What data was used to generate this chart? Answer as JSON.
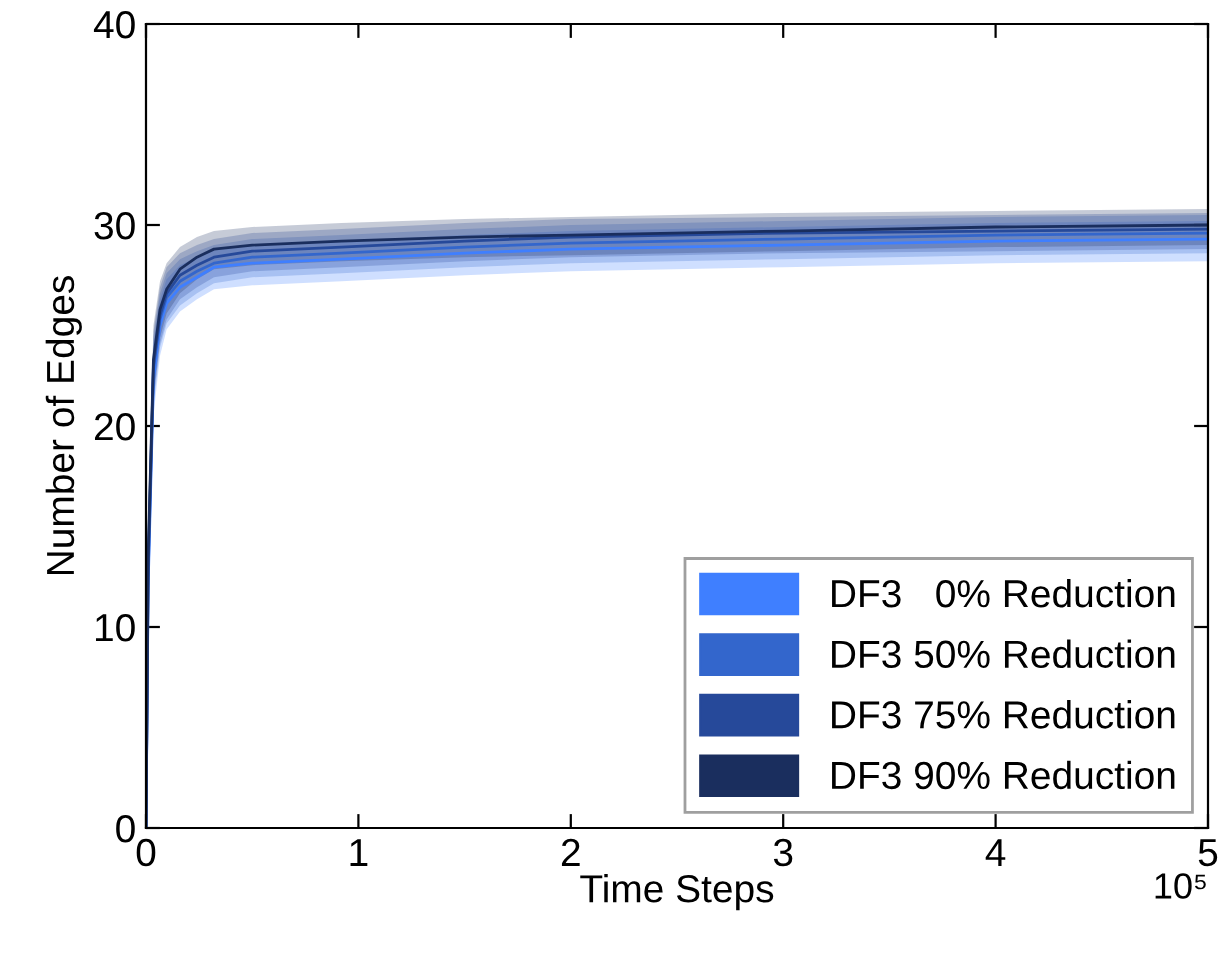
{
  "chart_data": {
    "type": "line",
    "xlabel": "Time Steps",
    "ylabel": "Number of Edges",
    "x": [
      0,
      0.01,
      0.035,
      0.066,
      0.097,
      0.16,
      0.24,
      0.32,
      0.5,
      0.92,
      1.5,
      2,
      3,
      4,
      5
    ],
    "series": [
      {
        "name": "DF3   0% Reduction",
        "color": "#3f7fff",
        "values": [
          0,
          12,
          22.3,
          25.0,
          26.1,
          26.9,
          27.4,
          27.9,
          28.1,
          28.3,
          28.6,
          28.8,
          29.0,
          29.2,
          29.3
        ],
        "lower": [
          0,
          10,
          20.5,
          23.5,
          24.8,
          25.7,
          26.3,
          26.8,
          27.0,
          27.2,
          27.5,
          27.7,
          27.9,
          28.1,
          28.2
        ],
        "upper": [
          0,
          14,
          24.0,
          26.3,
          27.3,
          28.0,
          28.4,
          28.8,
          29.0,
          29.2,
          29.5,
          29.7,
          29.9,
          30.1,
          30.2
        ]
      },
      {
        "name": "DF3 50% Reduction",
        "color": "#3366cc",
        "values": [
          0,
          12.5,
          22.8,
          25.3,
          26.4,
          27.2,
          27.7,
          28.1,
          28.4,
          28.6,
          28.9,
          29.1,
          29.3,
          29.5,
          29.6
        ],
        "lower": [
          0,
          10.5,
          21.0,
          23.9,
          25.1,
          26.0,
          26.6,
          27.1,
          27.4,
          27.6,
          27.9,
          28.1,
          28.3,
          28.5,
          28.6
        ],
        "upper": [
          0,
          14.5,
          24.4,
          26.6,
          27.6,
          28.3,
          28.7,
          29.0,
          29.3,
          29.5,
          29.8,
          30.0,
          30.2,
          30.4,
          30.5
        ]
      },
      {
        "name": "DF3 75% Reduction",
        "color": "#26499a",
        "values": [
          0,
          13,
          23.0,
          25.5,
          26.6,
          27.5,
          28.0,
          28.4,
          28.7,
          28.9,
          29.2,
          29.4,
          29.6,
          29.7,
          29.8
        ],
        "lower": [
          0,
          11,
          21.3,
          24.1,
          25.3,
          26.3,
          26.9,
          27.4,
          27.7,
          27.9,
          28.2,
          28.4,
          28.6,
          28.7,
          28.8
        ],
        "upper": [
          0,
          15,
          24.7,
          26.9,
          27.9,
          28.6,
          29.0,
          29.3,
          29.6,
          29.8,
          30.1,
          30.3,
          30.4,
          30.5,
          30.6
        ]
      },
      {
        "name": "DF3 90% Reduction",
        "color": "#1a2e5e",
        "values": [
          0,
          13.5,
          23.3,
          25.8,
          26.8,
          27.8,
          28.4,
          28.8,
          29.0,
          29.2,
          29.4,
          29.5,
          29.7,
          29.9,
          30.0
        ],
        "lower": [
          0,
          11.5,
          21.6,
          24.4,
          25.6,
          26.6,
          27.3,
          27.8,
          28.0,
          28.2,
          28.4,
          28.5,
          28.7,
          28.9,
          29.0
        ],
        "upper": [
          0,
          15.5,
          25.0,
          27.2,
          28.1,
          28.9,
          29.4,
          29.7,
          29.9,
          30.1,
          30.3,
          30.4,
          30.6,
          30.7,
          30.8
        ]
      }
    ],
    "xlim": [
      0,
      5
    ],
    "ylim": [
      0,
      40
    ],
    "xticks": [
      0,
      1,
      2,
      3,
      4,
      5
    ],
    "yticks": [
      0,
      10,
      20,
      30,
      40
    ],
    "annotations": [
      "10⁵"
    ],
    "legend": "bottom right",
    "grid": false
  }
}
